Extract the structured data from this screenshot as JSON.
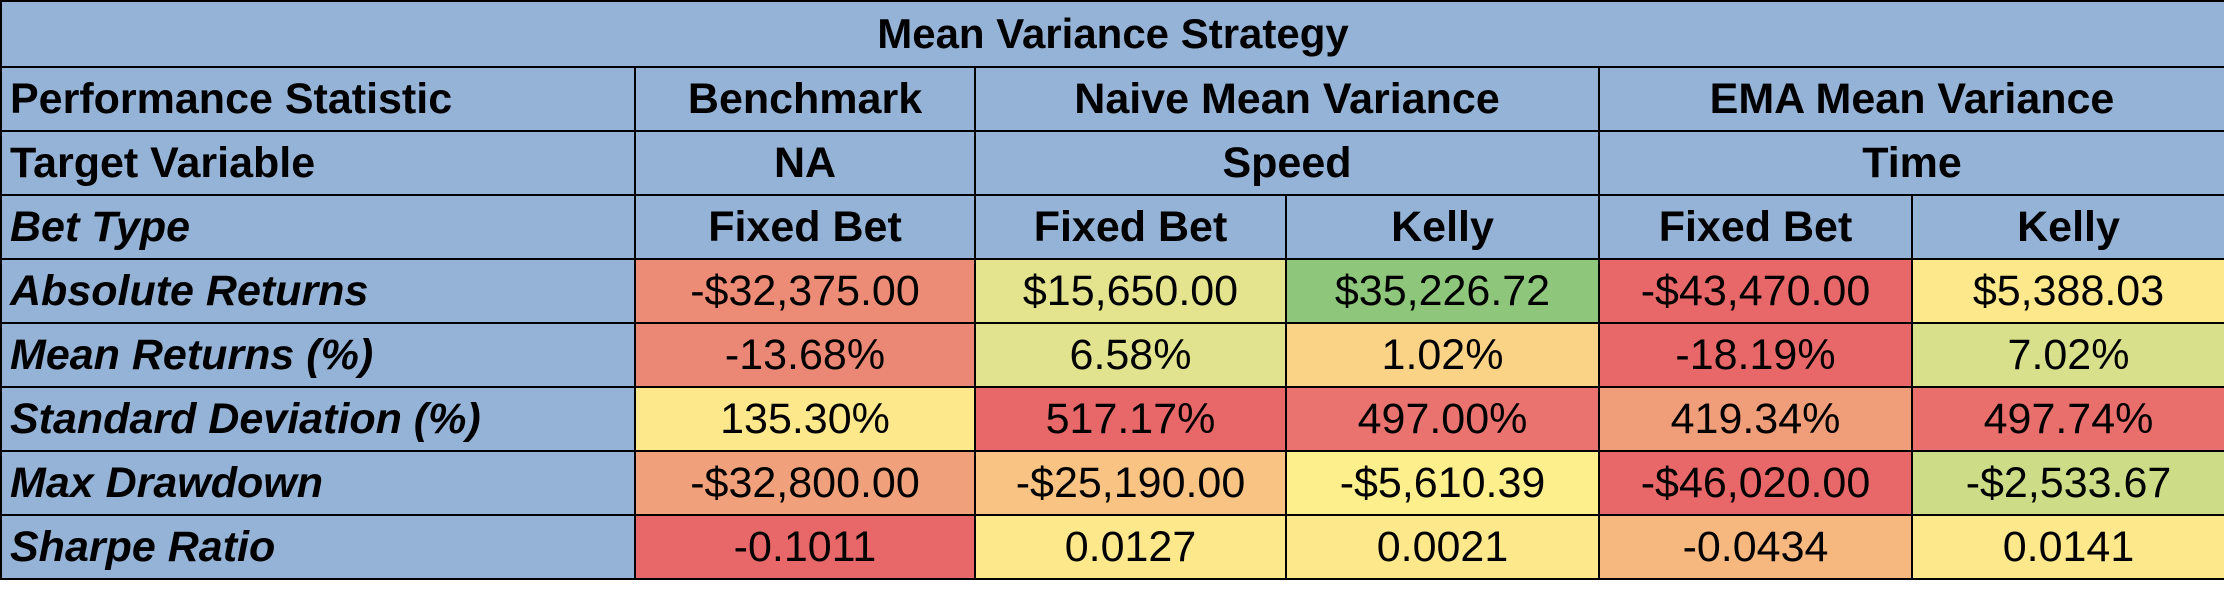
{
  "title": "Mean Variance Strategy",
  "header": {
    "performance_statistic": "Performance Statistic",
    "benchmark": "Benchmark",
    "naive": "Naive Mean Variance",
    "ema": "EMA Mean Variance"
  },
  "target_row": {
    "label": "Target Variable",
    "benchmark": "NA",
    "naive": "Speed",
    "ema": "Time"
  },
  "bet_type_row": {
    "label": "Bet Type",
    "values": [
      "Fixed Bet",
      "Fixed Bet",
      "Kelly",
      "Fixed Bet",
      "Kelly"
    ]
  },
  "rows": [
    {
      "label": "Absolute Returns",
      "values": [
        "-$32,375.00",
        "$15,650.00",
        "$35,226.72",
        "-$43,470.00",
        "$5,388.03"
      ],
      "colors": [
        "#ec8c76",
        "#e3e48d",
        "#8ec77b",
        "#e8686a",
        "#fde98c"
      ]
    },
    {
      "label": "Mean Returns (%)",
      "values": [
        "-13.68%",
        "6.58%",
        "1.02%",
        "-18.19%",
        "7.02%"
      ],
      "colors": [
        "#eb8875",
        "#e1e38e",
        "#fad386",
        "#e8686a",
        "#d9e08b"
      ]
    },
    {
      "label": "Standard Deviation (%)",
      "values": [
        "135.30%",
        "517.17%",
        "497.00%",
        "419.34%",
        "497.74%"
      ],
      "colors": [
        "#fde98c",
        "#e8686a",
        "#ea7370",
        "#f09e7a",
        "#e96f6d"
      ]
    },
    {
      "label": "Max Drawdown",
      "values": [
        "-$32,800.00",
        "-$25,190.00",
        "-$5,610.39",
        "-$46,020.00",
        "-$2,533.67"
      ],
      "colors": [
        "#f0a17b",
        "#f9c483",
        "#fdef8b",
        "#e8686a",
        "#cddd87"
      ]
    },
    {
      "label": "Sharpe Ratio",
      "values": [
        "-0.1011",
        "0.0127",
        "0.0021",
        "-0.0434",
        "0.0141"
      ],
      "colors": [
        "#e8686a",
        "#fde98c",
        "#fde98c",
        "#f7b880",
        "#fde98c"
      ]
    }
  ]
}
